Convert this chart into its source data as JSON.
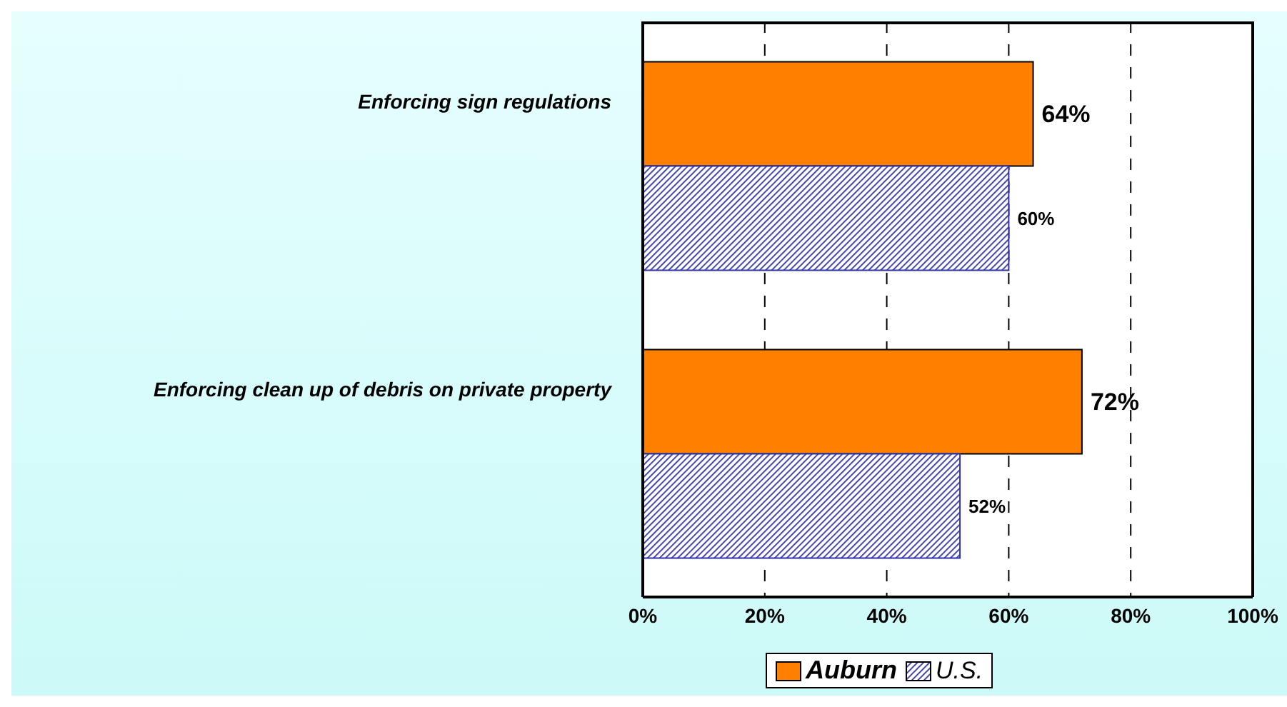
{
  "chart_data": {
    "type": "bar",
    "orientation": "horizontal",
    "categories": [
      "Enforcing sign regulations",
      "Enforcing clean up of debris on private property"
    ],
    "series": [
      {
        "name": "Auburn",
        "color": "#ff8000",
        "values": [
          64,
          72
        ],
        "value_labels": [
          "64%",
          "72%"
        ]
      },
      {
        "name": "U.S.",
        "color": "#3333aa",
        "values": [
          60,
          52
        ],
        "value_labels": [
          "60%",
          "52%"
        ]
      }
    ],
    "xlim": [
      0,
      100
    ],
    "xticks": [
      {
        "value": 0,
        "label": "0%"
      },
      {
        "value": 20,
        "label": "20%"
      },
      {
        "value": 40,
        "label": "40%"
      },
      {
        "value": 60,
        "label": "60%"
      },
      {
        "value": 80,
        "label": "80%"
      },
      {
        "value": 100,
        "label": "100%"
      }
    ],
    "grid": "x",
    "legend": "bottom"
  }
}
